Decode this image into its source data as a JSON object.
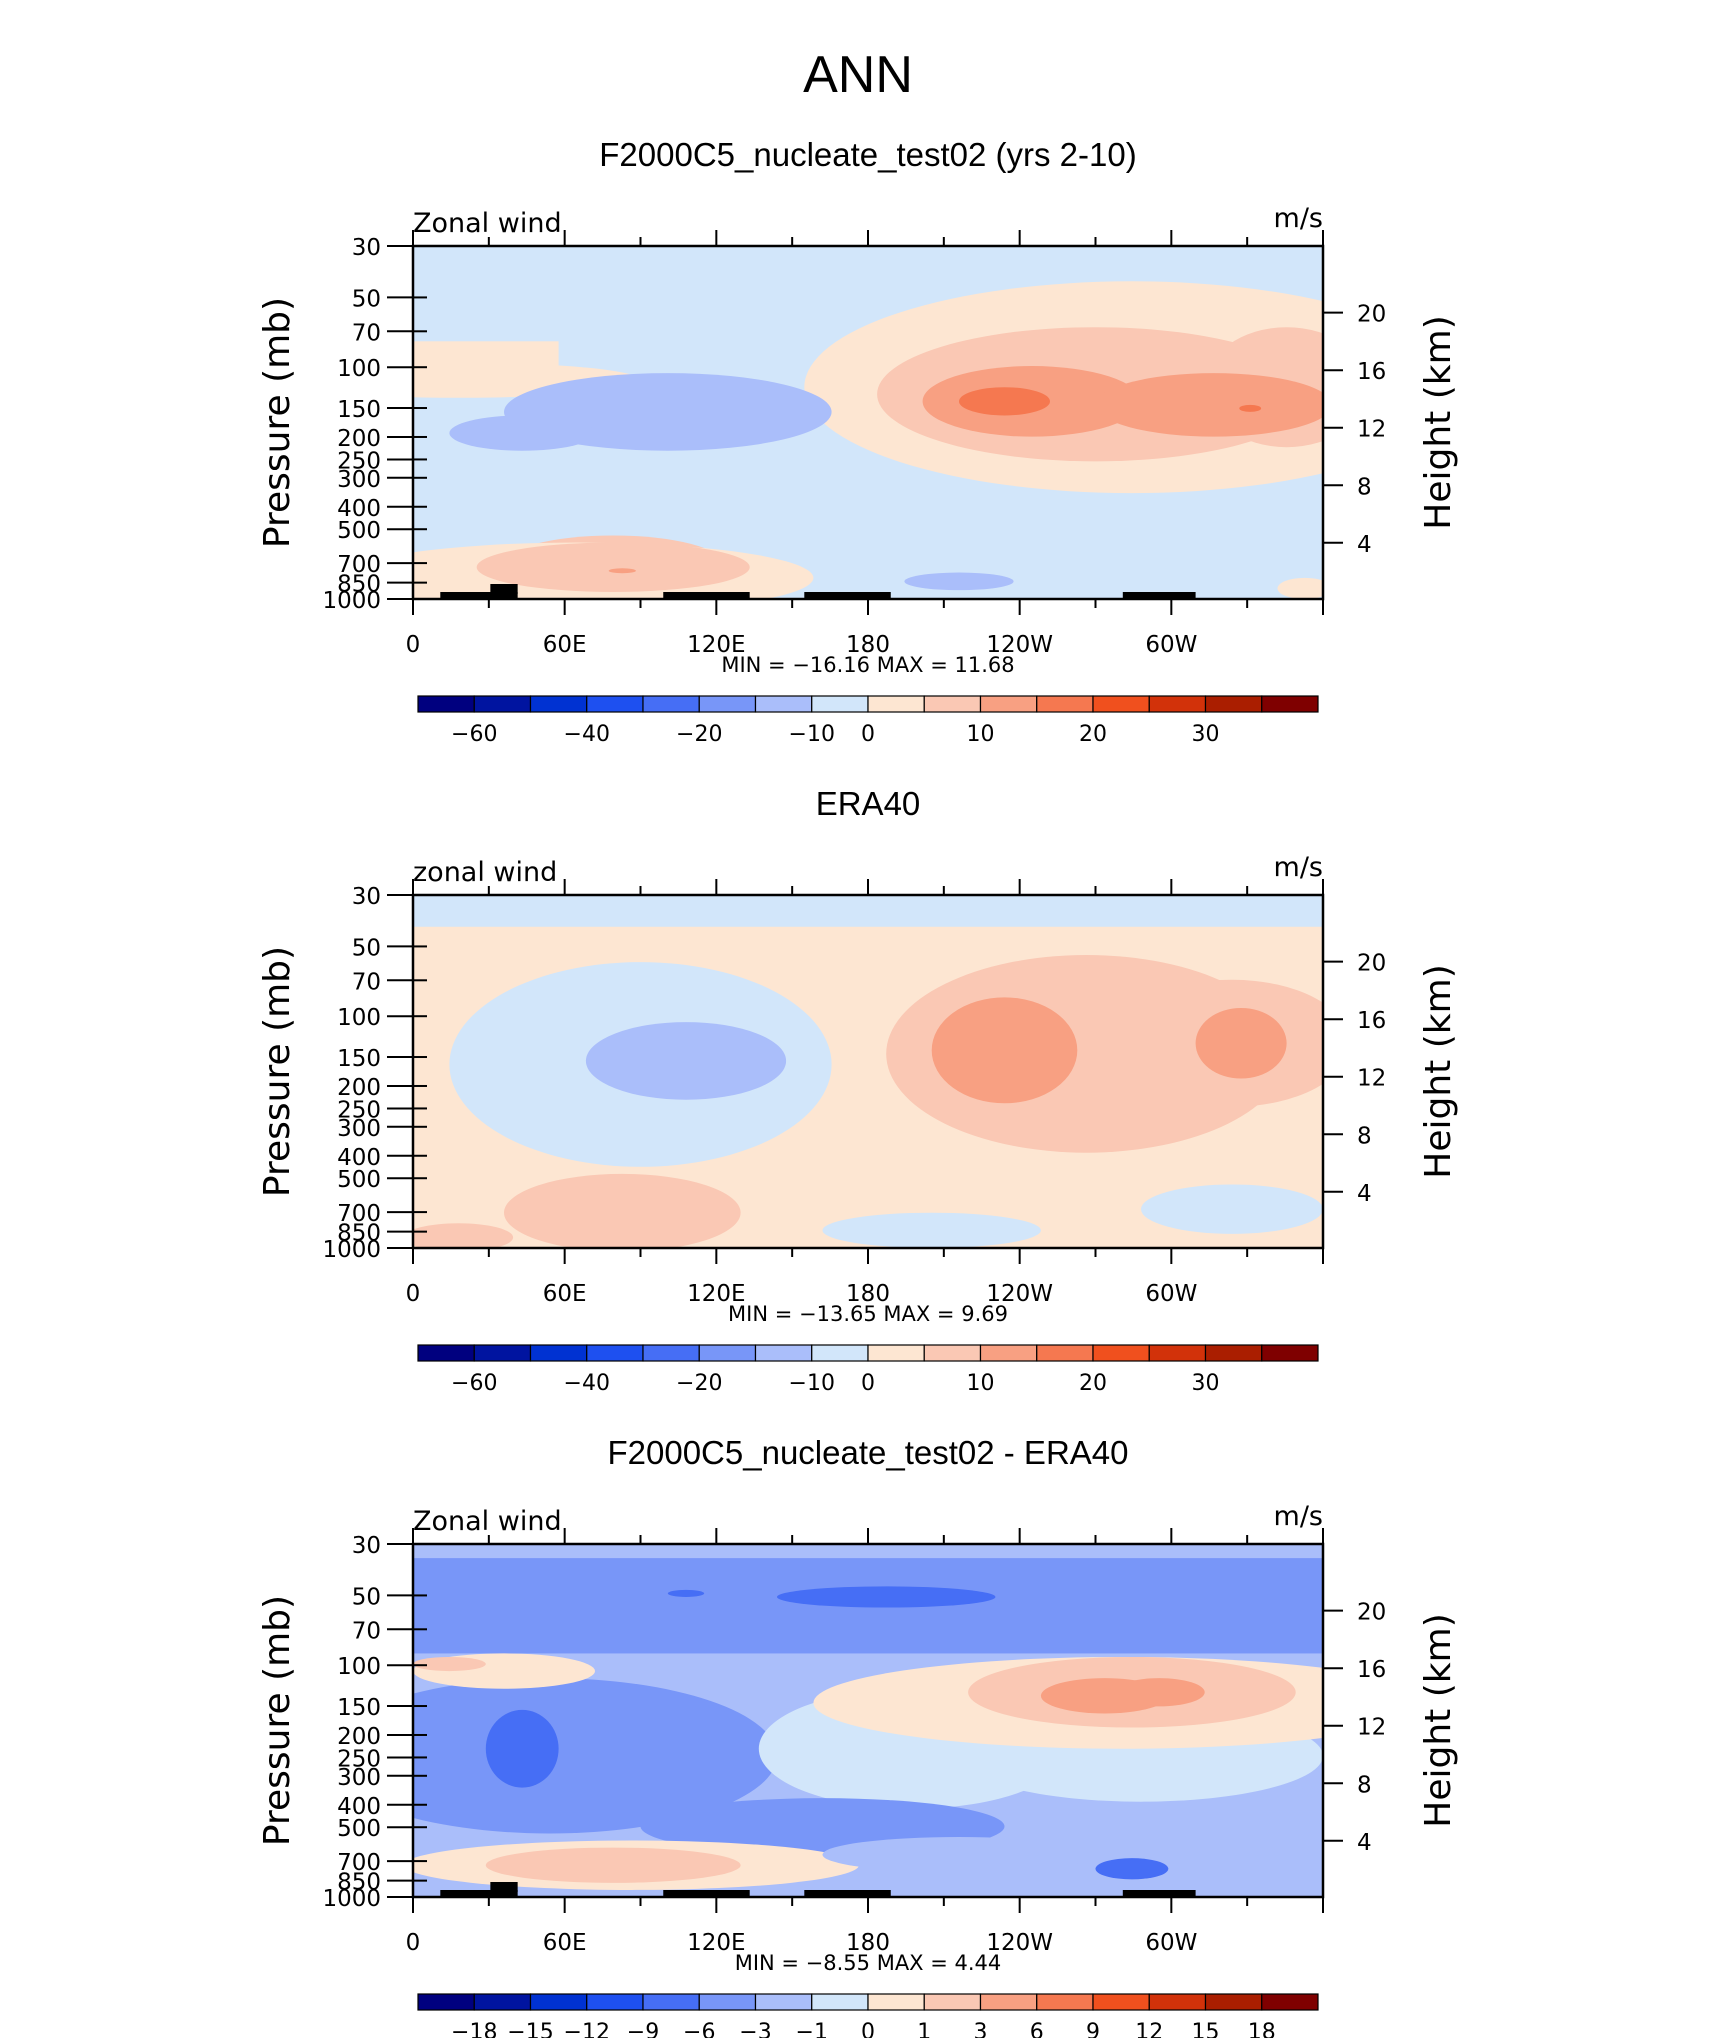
{
  "page_title": "ANN",
  "colors": {
    "main_scale": [
      "#00007f",
      "#0014a0",
      "#0032d2",
      "#1e50f0",
      "#466ef5",
      "#7896f8",
      "#aabefa",
      "#d2e6fa",
      "#fde6d2",
      "#fac8b4",
      "#f8a082",
      "#f57850",
      "#f0501e",
      "#d2320a",
      "#aa1e00",
      "#7f0000"
    ],
    "diff_scale": [
      "#00007f",
      "#0014a0",
      "#0032d2",
      "#1e50f0",
      "#466ef5",
      "#7896f8",
      "#aabefa",
      "#d2e6fa",
      "#fde6d2",
      "#fac8b4",
      "#f8a082",
      "#f57850",
      "#f0501e",
      "#d2320a",
      "#aa1e00",
      "#7f0000"
    ],
    "land": "#000000"
  },
  "chart_data": [
    {
      "type": "heatmap",
      "panel": "model",
      "title": "F2000C5_nucleate_test02 (yrs 2-10)",
      "variable": "Zonal wind",
      "units": "m/s",
      "ylabel": "Pressure (mb)",
      "ylabel_right": "Height (km)",
      "x_ticks": [
        "0",
        "60E",
        "120E",
        "180",
        "120W",
        "60W"
      ],
      "y_ticks": [
        "30",
        "50",
        "70",
        "100",
        "150",
        "200",
        "250",
        "300",
        "400",
        "500",
        "700",
        "850",
        "1000"
      ],
      "y_ticks_right": [
        "20",
        "16",
        "12",
        "8",
        "4"
      ],
      "stats": "MIN = −16.16 MAX = 11.68",
      "colorbar_labels": [
        "−60",
        "−40",
        "−20",
        "−10",
        "0",
        "10",
        "20",
        "30"
      ],
      "min": -16.16,
      "max": 11.68
    },
    {
      "type": "heatmap",
      "panel": "obs",
      "title": "ERA40",
      "variable": "zonal wind",
      "units": "m/s",
      "ylabel": "Pressure (mb)",
      "ylabel_right": "Height (km)",
      "x_ticks": [
        "0",
        "60E",
        "120E",
        "180",
        "120W",
        "60W"
      ],
      "y_ticks": [
        "30",
        "50",
        "70",
        "100",
        "150",
        "200",
        "250",
        "300",
        "400",
        "500",
        "700",
        "850",
        "1000"
      ],
      "y_ticks_right": [
        "20",
        "16",
        "12",
        "8",
        "4"
      ],
      "stats": "MIN = −13.65 MAX = 9.69",
      "colorbar_labels": [
        "−60",
        "−40",
        "−20",
        "−10",
        "0",
        "10",
        "20",
        "30"
      ],
      "min": -13.65,
      "max": 9.69
    },
    {
      "type": "heatmap",
      "panel": "diff",
      "title": "F2000C5_nucleate_test02 - ERA40",
      "variable": "Zonal wind",
      "units": "m/s",
      "ylabel": "Pressure (mb)",
      "ylabel_right": "Height (km)",
      "x_ticks": [
        "0",
        "60E",
        "120E",
        "180",
        "120W",
        "60W"
      ],
      "y_ticks": [
        "30",
        "50",
        "70",
        "100",
        "150",
        "200",
        "250",
        "300",
        "400",
        "500",
        "700",
        "850",
        "1000"
      ],
      "y_ticks_right": [
        "20",
        "16",
        "12",
        "8",
        "4"
      ],
      "stats": "MIN = −8.55 MAX = 4.44",
      "colorbar_labels": [
        "−18",
        "−15",
        "−12",
        "−9",
        "−6",
        "−3",
        "−1",
        "0",
        "1",
        "3",
        "6",
        "9",
        "12",
        "15",
        "18"
      ],
      "min": -8.55,
      "max": 4.44
    }
  ]
}
